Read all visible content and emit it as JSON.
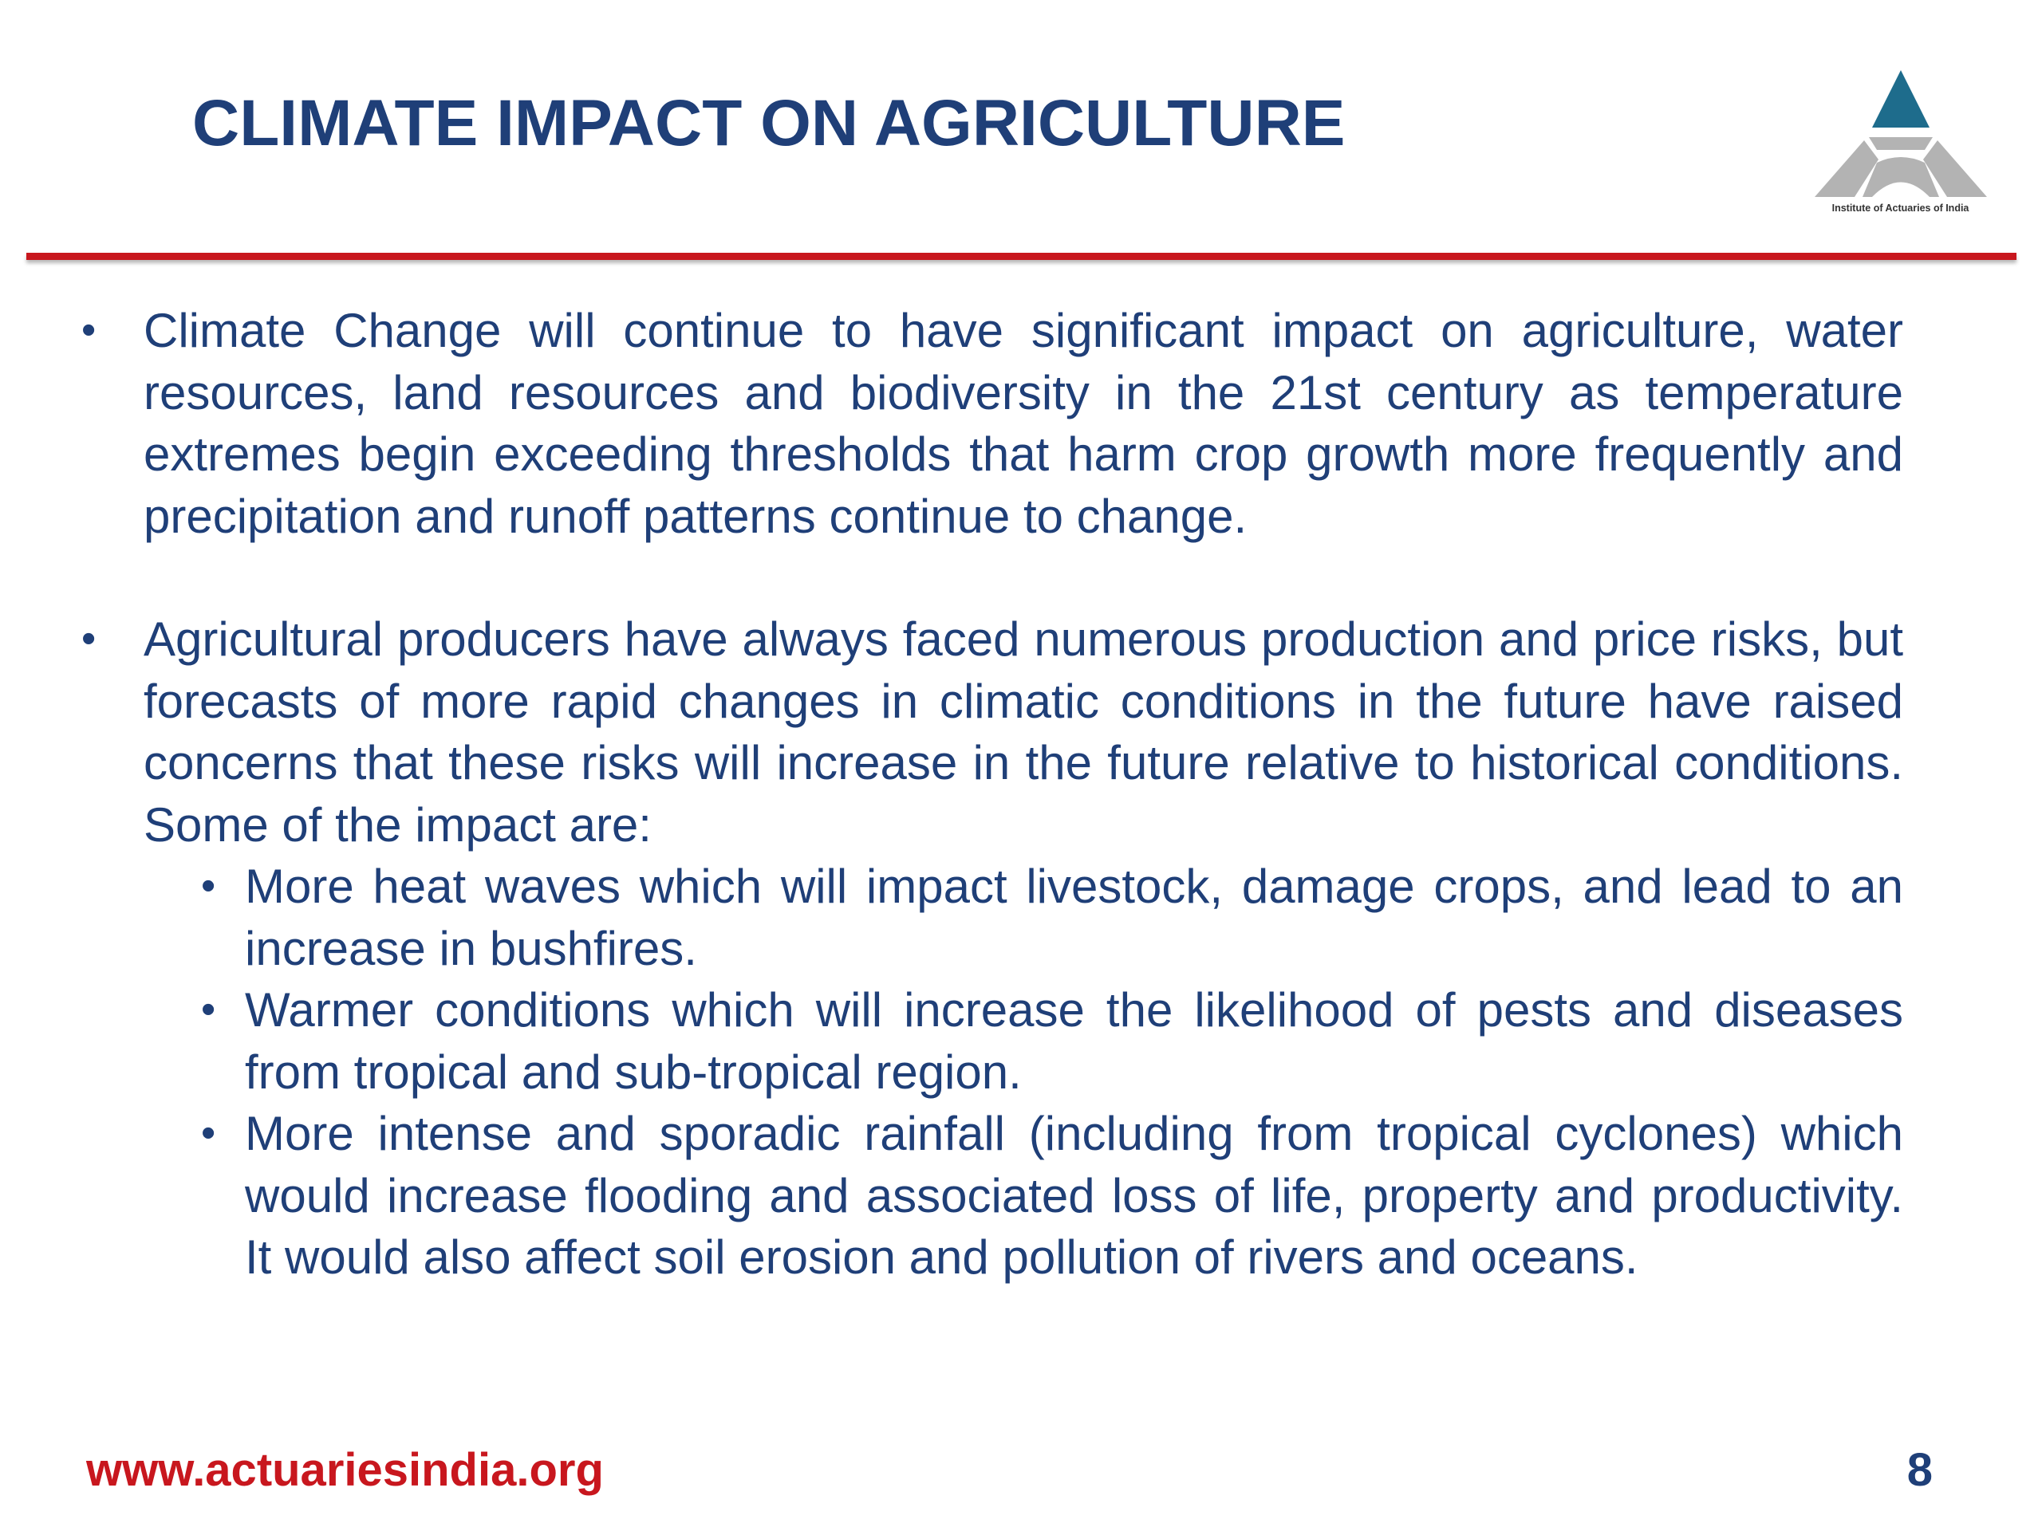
{
  "slide": {
    "title": "CLIMATE IMPACT ON AGRICULTURE",
    "logo": {
      "caption": "Institute of Actuaries of India",
      "colors": {
        "top_triangle": "#1e6c8c",
        "segments": "#b3b3b3"
      }
    },
    "bullets": [
      {
        "text": "Climate Change will continue to have significant impact on agriculture, water resources, land resources and biodiversity in the 21st century as temperature extremes begin exceeding thresholds that harm crop growth more frequently and precipitation and runoff patterns continue to change.",
        "sub_bullets": []
      },
      {
        "text": "Agricultural producers have always faced numerous production and price risks, but forecasts of more rapid changes in climatic conditions in the future have raised concerns that these risks will increase in the future relative to historical conditions. Some of the impact are:",
        "sub_bullets": [
          {
            "text": "More heat waves which will impact livestock, damage crops, and lead to an increase in bushfires."
          },
          {
            "text": "Warmer conditions which will increase the likelihood of pests and diseases from tropical and sub-tropical region."
          },
          {
            "text": "More intense and sporadic rainfall (including from tropical cyclones) which would increase flooding and associated loss of life, property and productivity. It would also affect soil erosion and pollution of rivers and oceans."
          }
        ]
      }
    ],
    "bullet_symbol": "•",
    "footer": {
      "url": "www.actuariesindia.org",
      "page_number": "8"
    },
    "colors": {
      "title": "#1f3f78",
      "body_text": "#1f3f78",
      "divider": "#c8171e",
      "footer_url": "#c8171e"
    }
  }
}
